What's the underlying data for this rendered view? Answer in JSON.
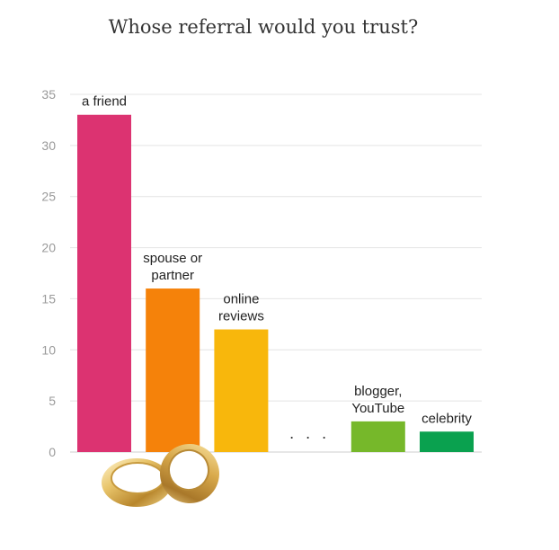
{
  "chart_data": {
    "type": "bar",
    "title": "Whose referral would you trust?",
    "xlabel": "",
    "ylabel": "",
    "ylim": [
      0,
      35
    ],
    "yticks": [
      0,
      5,
      10,
      15,
      20,
      25,
      30,
      35
    ],
    "grid": true,
    "categories": [
      "a friend",
      "spouse or partner",
      "online reviews",
      "...",
      "blogger, YouTube",
      "celebrity"
    ],
    "category_labels": [
      [
        "a friend"
      ],
      [
        "spouse or",
        "partner"
      ],
      [
        "online",
        "reviews"
      ],
      [
        "..."
      ],
      [
        "blogger,",
        "YouTube"
      ],
      [
        "celebrity"
      ]
    ],
    "values": [
      33,
      16,
      12,
      null,
      3,
      2
    ],
    "colors": [
      "#dc3371",
      "#f5820a",
      "#f8b70c",
      null,
      "#76b82a",
      "#0aa14f"
    ]
  },
  "decoration": {
    "icon": "wedding-rings-icon"
  }
}
